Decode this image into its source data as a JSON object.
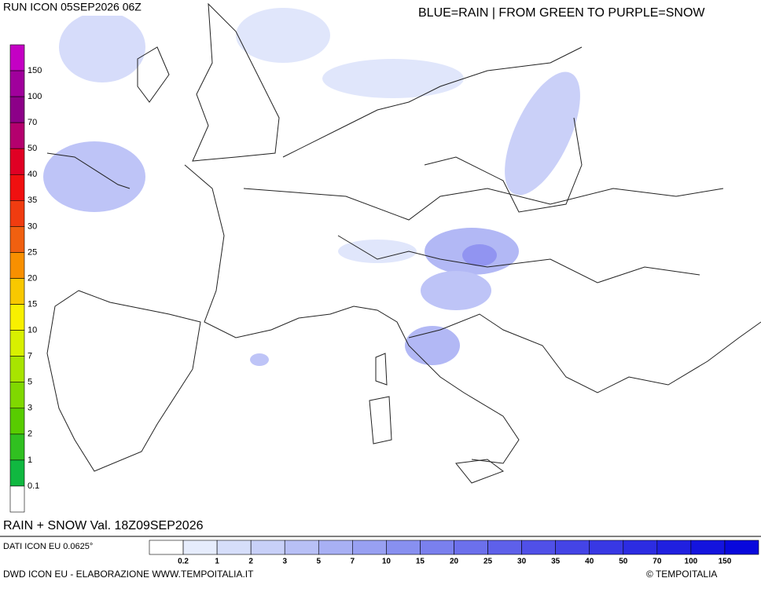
{
  "header": {
    "run": "RUN ICON 05SEP2026 06Z",
    "legend_note": "BLUE=RAIN | FROM GREEN TO PURPLE=SNOW"
  },
  "snow_scale": {
    "labels": [
      "150",
      "100",
      "70",
      "50",
      "40",
      "35",
      "30",
      "25",
      "20",
      "15",
      "10",
      "7",
      "5",
      "3",
      "2",
      "1",
      "0.1"
    ],
    "colors": [
      "#c400c4",
      "#a0009c",
      "#8c0088",
      "#b4006e",
      "#e00024",
      "#f01010",
      "#f03c10",
      "#f06010",
      "#f89000",
      "#f8c800",
      "#f8f000",
      "#d8f000",
      "#a8e400",
      "#80d800",
      "#58cc00",
      "#30c020",
      "#10b840",
      "#ffffff"
    ]
  },
  "map_label": "RAIN + SNOW Val. 18Z09SEP2026",
  "data_source": "DATI ICON EU 0.0625°",
  "rain_scale": {
    "labels": [
      "0.2",
      "1",
      "2",
      "3",
      "5",
      "7",
      "10",
      "15",
      "20",
      "25",
      "30",
      "35",
      "40",
      "50",
      "70",
      "100",
      "150"
    ],
    "colors": [
      "#ffffff",
      "#e6ecfc",
      "#d6defa",
      "#c8d0f8",
      "#b8c0f6",
      "#a8b0f4",
      "#98a0f2",
      "#8890f0",
      "#7a80ee",
      "#6c70ec",
      "#5e60ea",
      "#5050e8",
      "#4444e6",
      "#3838e4",
      "#2c2ce2",
      "#2020e0",
      "#1414de",
      "#0808dc"
    ]
  },
  "footer": {
    "credit": "DWD ICON EU - ELABORAZIONE WWW.TEMPOITALIA.IT",
    "copyright": "© TEMPOITALIA"
  }
}
